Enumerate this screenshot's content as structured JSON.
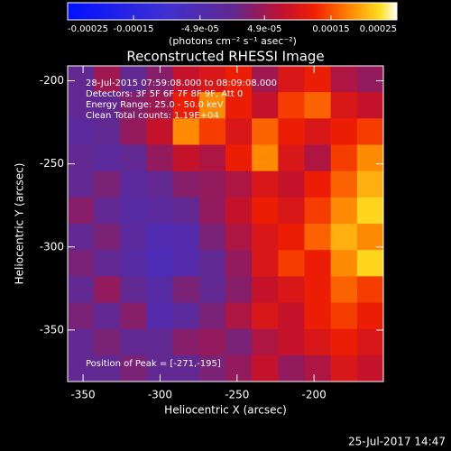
{
  "chart_data": {
    "type": "heatmap",
    "title": "Reconstructed RHESSI Image",
    "annotations": [
      "28-Jul-2015 07:59:08.000 to 08:09:08.000",
      "Detectors: 3F 5F 6F 7F 8F 9F, Att 0",
      "Energy Range: 25.0 - 50.0 keV",
      "Clean     Total counts: 1.19E+04"
    ],
    "peak_label": "Position of Peak = [-271,-195]",
    "x_label": "Heliocentric X (arcsec)",
    "y_label": "Heliocentric Y (arcsec)",
    "xlim": [
      -360,
      -155
    ],
    "ylim": [
      -381,
      -191
    ],
    "xticks": [
      -350,
      -300,
      -250,
      -200
    ],
    "yticks": [
      -350,
      -300,
      -250,
      -200
    ],
    "colorbar_label": "(photons cm⁻² s⁻¹ asec⁻²)",
    "clim": [
      -0.00025,
      0.00025
    ],
    "cticks": [
      -0.00025,
      -0.00015,
      {
        "value": -4.9e-05,
        "label": "-4.9e-05"
      },
      {
        "value": 4.9e-05,
        "label": "4.9e-05"
      },
      0.00015,
      0.00025
    ],
    "colormap": [
      [
        0,
        "#0010ff"
      ],
      [
        0.3,
        "#4030d0"
      ],
      [
        0.5,
        "#602890"
      ],
      [
        0.65,
        "#c01030"
      ],
      [
        0.75,
        "#f02000"
      ],
      [
        0.85,
        "#ff8000"
      ],
      [
        0.95,
        "#ffe020"
      ],
      [
        1,
        "#ffffff"
      ]
    ],
    "z": [
      [
        0,
        5e-05,
        0,
        3e-05,
        8e-05,
        0.0001,
        0.00012,
        5e-05,
        0.0001,
        0.00012,
        6e-05,
        4e-05
      ],
      [
        0,
        0,
        3e-05,
        5e-05,
        0.00012,
        0.00018,
        0.00012,
        8e-05,
        0.00014,
        0.00016,
        0.0001,
        8e-05
      ],
      [
        -2e-05,
        0,
        4e-05,
        8e-05,
        0.00018,
        0.00014,
        0.0001,
        0.00016,
        0.00012,
        0.0001,
        0.00012,
        0.00014
      ],
      [
        0,
        -2e-05,
        0,
        4e-05,
        8e-05,
        6e-05,
        0.00012,
        0.00018,
        0.0001,
        6e-05,
        0.00014,
        0.00018
      ],
      [
        0,
        2e-05,
        -2e-05,
        0,
        3e-05,
        4e-05,
        6e-05,
        0.0001,
        8e-05,
        0.00012,
        0.00016,
        0.0002
      ],
      [
        3e-05,
        0,
        -3e-05,
        -2e-05,
        0,
        4e-05,
        8e-05,
        0.00012,
        0.0001,
        0.00014,
        0.00018,
        0.00022
      ],
      [
        0,
        2e-05,
        -2e-05,
        -5e-05,
        -4e-05,
        2e-05,
        6e-05,
        0.0001,
        0.00012,
        0.00016,
        0.0002,
        0.00018
      ],
      [
        2e-05,
        0,
        -3e-05,
        -6e-05,
        -4e-05,
        0,
        4e-05,
        0.0001,
        0.00014,
        0.00012,
        0.00018,
        0.00022
      ],
      [
        0,
        4e-05,
        0,
        -3e-05,
        2e-05,
        0,
        3e-05,
        8e-05,
        0.0001,
        0.00012,
        0.00016,
        0.00014
      ],
      [
        2e-05,
        0,
        3e-05,
        -4e-05,
        -2e-05,
        2e-05,
        6e-05,
        0.0001,
        8e-05,
        0.00012,
        0.00014,
        0.00012
      ],
      [
        0,
        2e-05,
        0,
        0,
        3e-05,
        4e-05,
        2e-05,
        6e-05,
        8e-05,
        0.0001,
        0.00012,
        0.0001
      ],
      [
        0,
        0,
        2e-05,
        0,
        0,
        2e-05,
        4e-05,
        8e-05,
        4e-05,
        6e-05,
        0.0001,
        8e-05
      ]
    ],
    "timestamp": "25-Jul-2017 14:47"
  }
}
